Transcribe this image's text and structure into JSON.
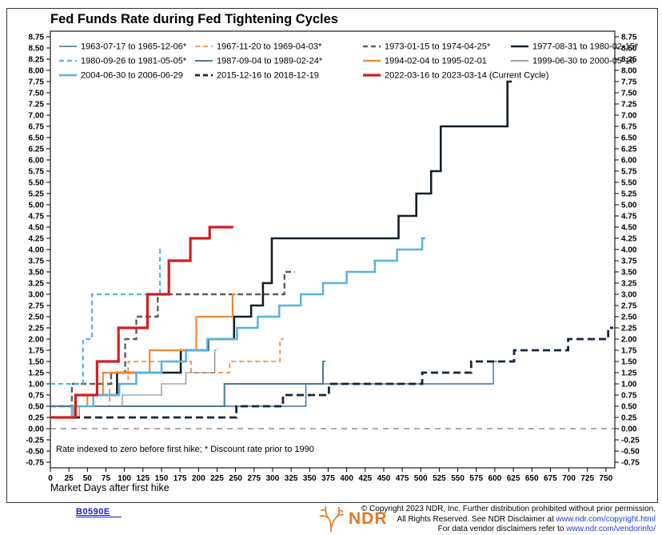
{
  "title": "Fed Funds Rate during Fed Tightening Cycles",
  "chart_data": {
    "type": "line",
    "title": "Fed Funds Rate during Fed Tightening Cycles",
    "xlabel": "Market Days after first hike",
    "ylabel": "",
    "note": "Rate indexed to zero before first hike; * Discount rate prior to 1990",
    "grid": "off",
    "zero_line_value": 0.0,
    "xlim": [
      0,
      762
    ],
    "ylim": [
      -0.875,
      8.875
    ],
    "x_axis": {
      "min": 0,
      "max": 750,
      "step": 25
    },
    "y_axis": {
      "min": -0.75,
      "max": 8.75,
      "step": 0.25,
      "sides": "both"
    },
    "legend_position": "top-inside",
    "legend_rows": [
      [
        0,
        1,
        2,
        3
      ],
      [
        4,
        5,
        6,
        7
      ],
      [
        8,
        9,
        10
      ]
    ],
    "series": [
      {
        "name": "1963-07-17 to 1965-12-06*",
        "color": "#3e7292",
        "width": 1.4,
        "dash": "",
        "steps": [
          [
            0,
            0.5
          ],
          [
            345,
            1.0
          ],
          [
            598,
            1.5
          ]
        ],
        "end": 603
      },
      {
        "name": "1967-11-20 to 1969-04-03*",
        "color": "#f09246",
        "width": 1.8,
        "dash": "6,4",
        "steps": [
          [
            0,
            0.5
          ],
          [
            80,
            1.0
          ],
          [
            105,
            1.5
          ],
          [
            190,
            1.25
          ],
          [
            242,
            1.5
          ],
          [
            310,
            2.0
          ]
        ],
        "end": 315
      },
      {
        "name": "1973-01-15 to 1974-04-25*",
        "color": "#5f5f5f",
        "width": 2.4,
        "dash": "7,4",
        "steps": [
          [
            0,
            0.5
          ],
          [
            29,
            1.0
          ],
          [
            82,
            1.25
          ],
          [
            101,
            2.0
          ],
          [
            116,
            2.5
          ],
          [
            145,
            3.0
          ],
          [
            316,
            3.5
          ]
        ],
        "end": 330
      },
      {
        "name": "1977-08-31 to 1980-02-15*",
        "color": "#111e29",
        "width": 2.6,
        "dash": "",
        "steps": [
          [
            0,
            0.25
          ],
          [
            34,
            0.75
          ],
          [
            90,
            1.25
          ],
          [
            176,
            1.75
          ],
          [
            213,
            2.0
          ],
          [
            248,
            2.5
          ],
          [
            271,
            2.75
          ],
          [
            287,
            3.25
          ],
          [
            299,
            4.25
          ],
          [
            470,
            4.75
          ],
          [
            494,
            5.25
          ],
          [
            514,
            5.75
          ],
          [
            527,
            6.75
          ],
          [
            617,
            7.75
          ]
        ],
        "end": 623
      },
      {
        "name": "1980-09-26 to 1981-05-05*",
        "color": "#56b4e2",
        "width": 2.2,
        "dash": "6,4",
        "steps": [
          [
            0,
            1.0
          ],
          [
            44,
            2.0
          ],
          [
            56,
            3.0
          ],
          [
            148,
            4.0
          ]
        ],
        "end": 152
      },
      {
        "name": "1987-09-04 to 1989-02-24*",
        "color": "#4a7a90",
        "width": 2.0,
        "dash": "",
        "steps": [
          [
            0,
            0.5
          ],
          [
            235,
            1.0
          ],
          [
            368,
            1.5
          ]
        ],
        "end": 371
      },
      {
        "name": "1994-02-04 to 1995-02-01",
        "color": "#ef8a32",
        "width": 2.2,
        "dash": "",
        "steps": [
          [
            0,
            0.25
          ],
          [
            32,
            0.5
          ],
          [
            50,
            0.75
          ],
          [
            71,
            1.25
          ],
          [
            134,
            1.75
          ],
          [
            197,
            2.5
          ],
          [
            246,
            3.0
          ]
        ],
        "end": 250
      },
      {
        "name": "1999-06-30 to 2000-05-16",
        "color": "#70808a",
        "width": 1.1,
        "dash": "",
        "steps": [
          [
            0,
            0.25
          ],
          [
            39,
            0.5
          ],
          [
            97,
            0.75
          ],
          [
            150,
            1.0
          ],
          [
            183,
            1.25
          ],
          [
            222,
            1.75
          ]
        ],
        "end": 225
      },
      {
        "name": "2004-06-30 to 2006-06-29",
        "color": "#56b4e2",
        "width": 2.5,
        "dash": "",
        "steps": [
          [
            0,
            0.25
          ],
          [
            29,
            0.5
          ],
          [
            58,
            0.75
          ],
          [
            93,
            1.0
          ],
          [
            116,
            1.25
          ],
          [
            150,
            1.5
          ],
          [
            183,
            1.75
          ],
          [
            212,
            2.0
          ],
          [
            252,
            2.25
          ],
          [
            280,
            2.5
          ],
          [
            309,
            2.75
          ],
          [
            338,
            3.0
          ],
          [
            368,
            3.25
          ],
          [
            400,
            3.5
          ],
          [
            438,
            3.75
          ],
          [
            468,
            4.0
          ],
          [
            502,
            4.25
          ]
        ],
        "end": 506
      },
      {
        "name": "2015-12-16 to 2018-12-19",
        "color": "#152638",
        "width": 2.8,
        "dash": "9,5",
        "steps": [
          [
            0,
            0.25
          ],
          [
            251,
            0.5
          ],
          [
            314,
            0.75
          ],
          [
            376,
            1.0
          ],
          [
            502,
            1.25
          ],
          [
            568,
            1.5
          ],
          [
            626,
            1.75
          ],
          [
            699,
            2.0
          ],
          [
            753,
            2.25
          ]
        ],
        "end": 760
      },
      {
        "name": "2022-03-16 to 2023-03-14 (Current Cycle)",
        "color": "#d01f1f",
        "width": 3.2,
        "dash": "",
        "steps": [
          [
            0,
            0.25
          ],
          [
            34,
            0.75
          ],
          [
            63,
            1.5
          ],
          [
            92,
            2.25
          ],
          [
            131,
            3.0
          ],
          [
            160,
            3.75
          ],
          [
            189,
            4.25
          ],
          [
            215,
            4.5
          ]
        ],
        "end": 247
      }
    ]
  },
  "colors": {
    "frame": "#333333",
    "plot_frame": "#1a1a1a",
    "zero_line": "#777777",
    "tick_text": "#000000",
    "link_blue": "#2244cc",
    "chart_id_blue": "#1a1acd",
    "logo_orange": "#e87722"
  },
  "footer": {
    "chart_id": "B0590E",
    "logo_text": "NDR",
    "copyright_line1": "© Copyright 2023 NDR, Inc. Further distribution prohibited without prior permission.",
    "copyright_line2_prefix": "All Rights Reserved. See NDR Disclaimer at ",
    "copyright_line2_link": "www.ndr.com/copyright.html",
    "copyright_line3_prefix": "For data vendor disclaimers refer to ",
    "copyright_line3_link": "www.ndr.com/vendorinfo/"
  }
}
